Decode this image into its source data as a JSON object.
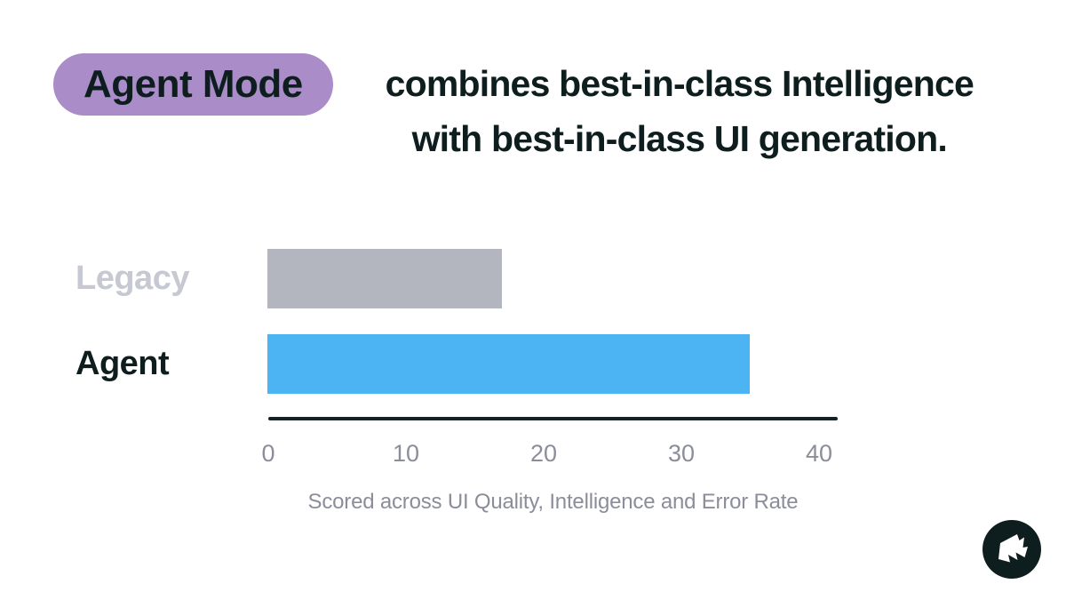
{
  "header": {
    "badge": "Agent Mode",
    "title_line1": "combines best-in-class Intelligence",
    "title_line2": "with best-in-class UI generation."
  },
  "chart_data": {
    "type": "bar",
    "orientation": "horizontal",
    "categories": [
      "Legacy",
      "Agent"
    ],
    "values": [
      17,
      35
    ],
    "xlim": [
      0,
      40
    ],
    "ticks": [
      0,
      10,
      20,
      30,
      40
    ],
    "caption": "Scored across UI Quality, Intelligence and Error Rate",
    "bar_colors": [
      "#b4b6bf",
      "#4db4f4"
    ],
    "label_colors": [
      "#c6c8d2",
      "#0e1e1e"
    ],
    "grid": false,
    "legend": false
  },
  "colors": {
    "background": "#ffffff",
    "badge_bg": "#a98cc8",
    "text_dark": "#0e1e1e",
    "muted_gray": "#8b8e9a",
    "axis": "#122226",
    "logo": "#0e1e1e"
  }
}
